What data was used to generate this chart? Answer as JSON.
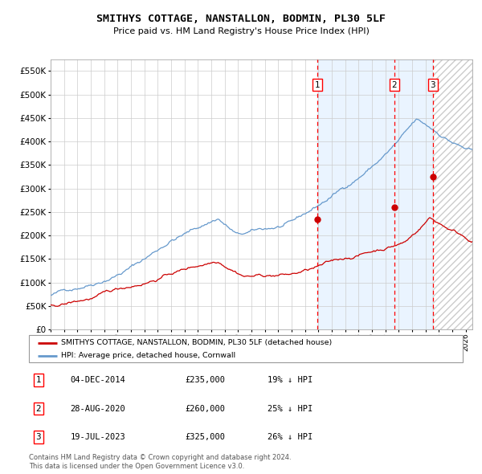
{
  "title": "SMITHYS COTTAGE, NANSTALLON, BODMIN, PL30 5LF",
  "subtitle": "Price paid vs. HM Land Registry's House Price Index (HPI)",
  "ylim": [
    0,
    575000
  ],
  "yticks": [
    0,
    50000,
    100000,
    150000,
    200000,
    250000,
    300000,
    350000,
    400000,
    450000,
    500000,
    550000
  ],
  "xlim_start": 1995.0,
  "xlim_end": 2026.5,
  "sale_color": "#cc0000",
  "hpi_color": "#6699cc",
  "grid_color": "#cccccc",
  "bg_color": "#ffffff",
  "shade_color": "#ddeeff",
  "transactions": [
    {
      "label": "1",
      "date_str": "04-DEC-2014",
      "price": 235000,
      "year": 2014.92,
      "pct": "19%"
    },
    {
      "label": "2",
      "date_str": "28-AUG-2020",
      "price": 260000,
      "year": 2020.66,
      "pct": "25%"
    },
    {
      "label": "3",
      "date_str": "19-JUL-2023",
      "price": 325000,
      "year": 2023.54,
      "pct": "26%"
    }
  ],
  "legend_sale_label": "SMITHYS COTTAGE, NANSTALLON, BODMIN, PL30 5LF (detached house)",
  "legend_hpi_label": "HPI: Average price, detached house, Cornwall",
  "footer": "Contains HM Land Registry data © Crown copyright and database right 2024.\nThis data is licensed under the Open Government Licence v3.0.",
  "hatch_region_start": 2023.54,
  "shade_region_start": 2014.92
}
